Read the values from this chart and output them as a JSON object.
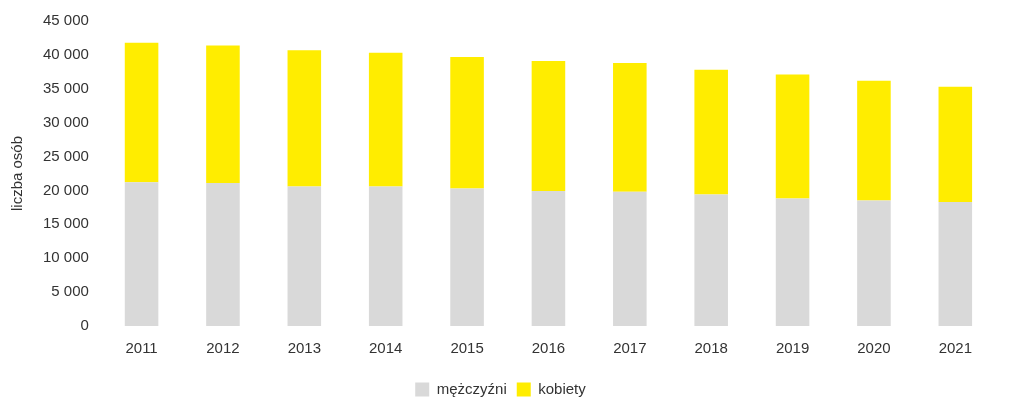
{
  "chart_data": {
    "type": "bar",
    "stacked": true,
    "ylabel": "liczba osób",
    "categories": [
      "2011",
      "2012",
      "2013",
      "2014",
      "2015",
      "2016",
      "2017",
      "2018",
      "2019",
      "2020",
      "2021"
    ],
    "series": [
      {
        "name": "mężczyźni",
        "color": "#d9d9d9",
        "values": [
          21200,
          21100,
          20600,
          20600,
          20300,
          19900,
          19800,
          19400,
          18800,
          18500,
          18300
        ]
      },
      {
        "name": "kobiety",
        "color": "#ffed00",
        "values": [
          20600,
          20300,
          20100,
          19700,
          19400,
          19200,
          19000,
          18400,
          18300,
          17700,
          17000
        ]
      }
    ],
    "ylim": [
      0,
      45000
    ],
    "yticks": [
      {
        "value": 0,
        "label": "0"
      },
      {
        "value": 5000,
        "label": "5 000"
      },
      {
        "value": 10000,
        "label": "10 000"
      },
      {
        "value": 15000,
        "label": "15 000"
      },
      {
        "value": 20000,
        "label": "20 000"
      },
      {
        "value": 25000,
        "label": "25 000"
      },
      {
        "value": 30000,
        "label": "30 000"
      },
      {
        "value": 35000,
        "label": "35 000"
      },
      {
        "value": 40000,
        "label": "40 000"
      },
      {
        "value": 45000,
        "label": "45 000"
      }
    ],
    "grid": false,
    "legend": "bottom"
  }
}
